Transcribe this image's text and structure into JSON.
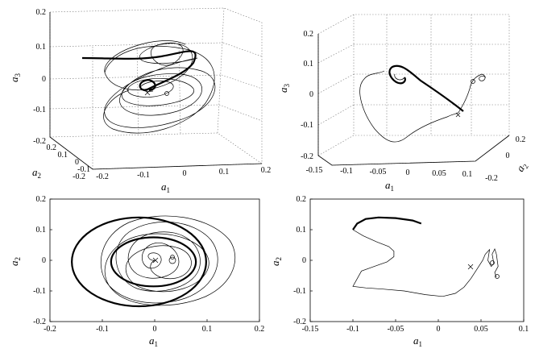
{
  "chart_data": [
    {
      "type": "line",
      "panel": "top-left",
      "projection": "3d",
      "xlabel": "a",
      "xlabel_sub": "1",
      "ylabel": "a",
      "ylabel_sub": "2",
      "zlabel": "a",
      "zlabel_sub": "3",
      "xlim": [
        -0.2,
        0.2
      ],
      "ylim": [
        -0.2,
        0.2
      ],
      "zlim": [
        -0.2,
        0.2
      ],
      "x_ticks": [
        "-0.2",
        "-0.1",
        "0",
        "0.1",
        "0.2"
      ],
      "y_ticks": [
        "-0.2",
        "-0.1",
        "0",
        "0.1",
        "0.2"
      ],
      "z_ticks": [
        "-0.2",
        "-0.1",
        "0",
        "0.1",
        "0.2"
      ],
      "grid": true,
      "markers": [
        "x",
        "o"
      ]
    },
    {
      "type": "line",
      "panel": "top-right",
      "projection": "3d",
      "xlabel": "a",
      "xlabel_sub": "1",
      "ylabel": "a",
      "ylabel_sub": "2",
      "zlabel": "a",
      "zlabel_sub": "3",
      "xlim": [
        -0.15,
        0.1
      ],
      "ylim": [
        -0.2,
        0.2
      ],
      "zlim": [
        -0.2,
        0.2
      ],
      "x_ticks": [
        "-0.15",
        "-0.1",
        "-0.05",
        "0",
        "0.05",
        "0.1"
      ],
      "y_ticks": [
        "-0.2",
        "0",
        "0.2"
      ],
      "z_ticks": [
        "-0.2",
        "-0.1",
        "0",
        "0.1",
        "0.2"
      ],
      "grid": true,
      "markers": [
        "x",
        "o"
      ]
    },
    {
      "type": "line",
      "panel": "bottom-left",
      "projection": "2d",
      "xlabel": "a",
      "xlabel_sub": "1",
      "ylabel": "a",
      "ylabel_sub": "2",
      "xlim": [
        -0.2,
        0.2
      ],
      "ylim": [
        -0.2,
        0.2
      ],
      "x_ticks": [
        "-0.2",
        "-0.1",
        "0",
        "0.1",
        "0.2"
      ],
      "y_ticks": [
        "-0.2",
        "-0.1",
        "0",
        "0.1",
        "0.2"
      ],
      "grid": false,
      "thick_loops": [
        [
          0.095,
          0.145
        ],
        [
          0.06,
          0.08
        ]
      ],
      "markers": [
        "x",
        "o"
      ]
    },
    {
      "type": "line",
      "panel": "bottom-right",
      "projection": "2d",
      "xlabel": "a",
      "xlabel_sub": "1",
      "ylabel": "a",
      "ylabel_sub": "2",
      "xlim": [
        -0.15,
        0.1
      ],
      "ylim": [
        -0.2,
        0.2
      ],
      "x_ticks": [
        "-0.15",
        "-0.1",
        "-0.05",
        "0",
        "0.05",
        "0.1"
      ],
      "y_ticks": [
        "-0.2",
        "-0.1",
        "0",
        "0.1",
        "0.2"
      ],
      "grid": false,
      "thick_curve": {
        "x": [
          -0.1,
          -0.095,
          -0.085,
          -0.07,
          -0.05,
          -0.03,
          -0.02
        ],
        "y": [
          0.1,
          0.12,
          0.135,
          0.14,
          0.138,
          0.13,
          0.12
        ]
      },
      "thin_curve": {
        "x": [
          -0.1,
          -0.088,
          -0.072,
          -0.058,
          -0.052,
          -0.052,
          -0.06,
          -0.075,
          -0.09,
          -0.1,
          -0.085,
          -0.065,
          -0.04,
          -0.015,
          0.005,
          0.02,
          0.03,
          0.038,
          0.045,
          0.052,
          0.055,
          0.06,
          0.058,
          0.062,
          0.065,
          0.063,
          0.066,
          0.068,
          0.07,
          0.066,
          0.068
        ],
        "y": [
          0.1,
          0.08,
          0.06,
          0.045,
          0.03,
          0.012,
          -0.005,
          -0.02,
          -0.035,
          -0.085,
          -0.09,
          -0.094,
          -0.1,
          -0.112,
          -0.118,
          -0.108,
          -0.088,
          -0.06,
          -0.03,
          0.0,
          0.02,
          0.035,
          0.0,
          -0.02,
          -0.01,
          0.02,
          0.037,
          0.02,
          -0.02,
          -0.04,
          -0.055
        ]
      },
      "markers": [
        "x",
        "o"
      ]
    }
  ]
}
